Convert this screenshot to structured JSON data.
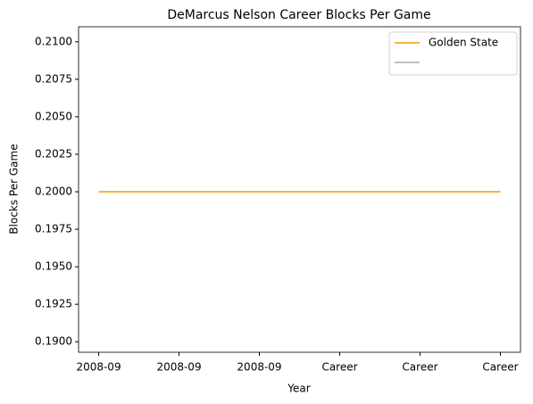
{
  "chart_data": {
    "type": "line",
    "title": "DeMarcus Nelson Career Blocks Per Game",
    "xlabel": "Year",
    "ylabel": "Blocks Per Game",
    "categories": [
      "2008-09",
      "2008-09",
      "2008-09",
      "Career",
      "Career",
      "Career"
    ],
    "series": [
      {
        "name": "Golden State",
        "color": "#f6b73c",
        "values": [
          0.2,
          0.2,
          0.2,
          0.2,
          0.2,
          0.2
        ]
      },
      {
        "color": "#bfbfbf",
        "values": [
          0.2,
          0.2,
          0.2,
          0.2,
          0.2,
          0.2
        ]
      }
    ],
    "ylim": [
      0.1893,
      0.211
    ],
    "yticks": [
      {
        "value": 0.19,
        "label": "0.1900"
      },
      {
        "value": 0.1925,
        "label": "0.1925"
      },
      {
        "value": 0.195,
        "label": "0.1950"
      },
      {
        "value": 0.1975,
        "label": "0.1975"
      },
      {
        "value": 0.2,
        "label": "0.2000"
      },
      {
        "value": 0.2025,
        "label": "0.2025"
      },
      {
        "value": 0.205,
        "label": "0.2050"
      },
      {
        "value": 0.2075,
        "label": "0.2075"
      },
      {
        "value": 0.21,
        "label": "0.2100"
      }
    ],
    "legend": "upper right",
    "grid": false
  }
}
